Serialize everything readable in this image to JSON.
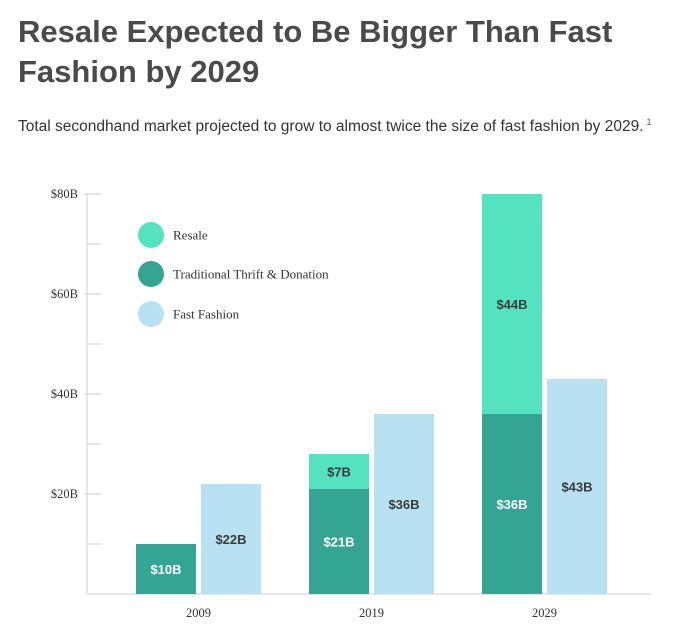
{
  "header": {
    "title": "Resale Expected to Be Bigger Than Fast Fashion by 2029",
    "subtitle": "Total secondhand market projected to grow to almost twice the size of fast fashion by 2029.",
    "footnote_marker": "1"
  },
  "colors": {
    "resale": "#55e3bf",
    "thrift": "#33a592",
    "fast_fashion": "#b8e2f2",
    "label_dark": "#3b3b3b",
    "label_light": "#ffffff"
  },
  "chart_data": {
    "type": "bar",
    "stacked": true,
    "categories": [
      "2009",
      "2019",
      "2029"
    ],
    "series": [
      {
        "name": "Traditional Thrift & Donation",
        "group": "secondhand",
        "color": "#33a592",
        "values": [
          10,
          21,
          36
        ],
        "labels": [
          "$10B",
          "$21B",
          "$36B"
        ],
        "label_color": "#ffffff"
      },
      {
        "name": "Resale",
        "group": "secondhand",
        "color": "#55e3bf",
        "values": [
          0,
          7,
          44
        ],
        "labels": [
          "",
          "$7B",
          "$44B"
        ],
        "label_color": "#3b3b3b"
      },
      {
        "name": "Fast Fashion",
        "group": "fast_fashion",
        "color": "#b8e2f2",
        "values": [
          22,
          36,
          43
        ],
        "labels": [
          "$22B",
          "$36B",
          "$43B"
        ],
        "label_color": "#3b3b3b"
      }
    ],
    "y_ticks": [
      {
        "value": 20,
        "label": "$20B"
      },
      {
        "value": 40,
        "label": "$40B"
      },
      {
        "value": 60,
        "label": "$60B"
      },
      {
        "value": 80,
        "label": "$80B"
      }
    ],
    "y_minor_ticks": [
      10,
      30,
      50,
      70
    ],
    "ylim": [
      0,
      80
    ],
    "grid": false,
    "legend": {
      "position": "top-left",
      "items": [
        {
          "label": "Resale",
          "color": "#55e3bf"
        },
        {
          "label": "Traditional Thrift & Donation",
          "color": "#33a592"
        },
        {
          "label": "Fast Fashion",
          "color": "#b8e2f2"
        }
      ]
    }
  }
}
